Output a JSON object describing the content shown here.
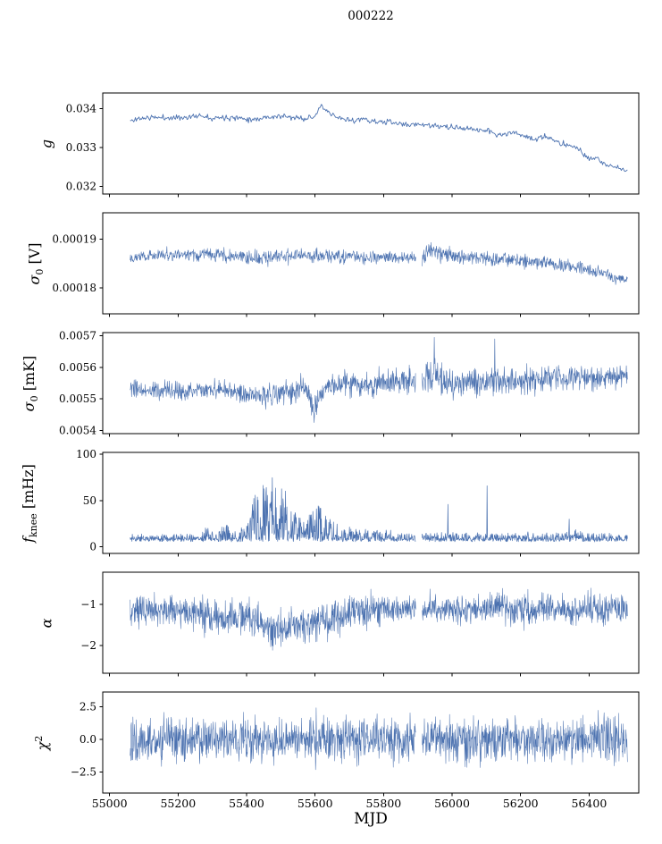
{
  "chart_data": {
    "type": "line",
    "title": "000222",
    "color": "#4c72b0",
    "x": {
      "label": "MJD",
      "lim": [
        54980,
        56545
      ],
      "start": 55060,
      "end": 56512,
      "gap": [
        55894,
        55912
      ],
      "ticks": [
        {
          "v": 55000,
          "label": "55000"
        },
        {
          "v": 55200,
          "label": "55200"
        },
        {
          "v": 55400,
          "label": "55400"
        },
        {
          "v": 55600,
          "label": "55600"
        },
        {
          "v": 55800,
          "label": "55800"
        },
        {
          "v": 56000,
          "label": "56000"
        },
        {
          "v": 56200,
          "label": "56200"
        },
        {
          "v": 56400,
          "label": "56400"
        }
      ]
    },
    "panels": [
      {
        "name": "g",
        "ylabel": [
          {
            "t": "g",
            "italic": true
          }
        ],
        "label_x": 52,
        "ylim": [
          0.0318,
          0.0344
        ],
        "yticks": [
          {
            "v": 0.032,
            "label": "0.032"
          },
          {
            "v": 0.033,
            "label": "0.033"
          },
          {
            "v": 0.034,
            "label": "0.034"
          }
        ],
        "points": 560,
        "lw": 0.9,
        "seed": 11,
        "mode": "sym",
        "gap": false,
        "trend": [
          [
            55060,
            0.03368
          ],
          [
            55090,
            0.03375
          ],
          [
            55130,
            0.03377
          ],
          [
            55180,
            0.03376
          ],
          [
            55230,
            0.03378
          ],
          [
            55270,
            0.03382
          ],
          [
            55300,
            0.03376
          ],
          [
            55340,
            0.03378
          ],
          [
            55380,
            0.03376
          ],
          [
            55420,
            0.03372
          ],
          [
            55460,
            0.03378
          ],
          [
            55500,
            0.0338
          ],
          [
            55540,
            0.03376
          ],
          [
            55570,
            0.03375
          ],
          [
            55600,
            0.0338
          ],
          [
            55618,
            0.03408
          ],
          [
            55635,
            0.0339
          ],
          [
            55660,
            0.03378
          ],
          [
            55700,
            0.0337
          ],
          [
            55740,
            0.03372
          ],
          [
            55780,
            0.03366
          ],
          [
            55820,
            0.03365
          ],
          [
            55860,
            0.03358
          ],
          [
            55900,
            0.0336
          ],
          [
            55940,
            0.03356
          ],
          [
            55980,
            0.03352
          ],
          [
            56020,
            0.0335
          ],
          [
            56060,
            0.03347
          ],
          [
            56100,
            0.03344
          ],
          [
            56140,
            0.0333
          ],
          [
            56170,
            0.03338
          ],
          [
            56200,
            0.03334
          ],
          [
            56240,
            0.0332
          ],
          [
            56270,
            0.03328
          ],
          [
            56300,
            0.03316
          ],
          [
            56340,
            0.03306
          ],
          [
            56370,
            0.03296
          ],
          [
            56400,
            0.03268
          ],
          [
            56420,
            0.03272
          ],
          [
            56450,
            0.03256
          ],
          [
            56480,
            0.03248
          ],
          [
            56512,
            0.03242
          ]
        ],
        "noise": [
          [
            55060,
            6e-05
          ],
          [
            56512,
            6e-05
          ]
        ],
        "spikes": []
      },
      {
        "name": "sigma0-v",
        "ylabel": [
          {
            "t": "σ",
            "italic": true
          },
          {
            "t": "0",
            "sub": true
          },
          {
            "t": " [V]"
          }
        ],
        "label_x": 40,
        "ylim": [
          0.0001746,
          0.0001955
        ],
        "yticks": [
          {
            "v": 0.00018,
            "label": "0.00018"
          },
          {
            "v": 0.00019,
            "label": "0.00019"
          }
        ],
        "points": 1300,
        "lw": 0.6,
        "seed": 22,
        "mode": "sym",
        "gap": true,
        "trend": [
          [
            55060,
            0.0001864
          ],
          [
            55150,
            0.0001867
          ],
          [
            55250,
            0.0001868
          ],
          [
            55350,
            0.0001867
          ],
          [
            55420,
            0.000186
          ],
          [
            55480,
            0.0001864
          ],
          [
            55560,
            0.0001866
          ],
          [
            55640,
            0.0001866
          ],
          [
            55720,
            0.0001864
          ],
          [
            55800,
            0.0001863
          ],
          [
            55870,
            0.0001862
          ],
          [
            55910,
            0.000186
          ],
          [
            55935,
            0.000188
          ],
          [
            55960,
            0.0001874
          ],
          [
            55990,
            0.0001868
          ],
          [
            56030,
            0.0001864
          ],
          [
            56080,
            0.0001861
          ],
          [
            56130,
            0.000186
          ],
          [
            56180,
            0.0001857
          ],
          [
            56230,
            0.0001855
          ],
          [
            56280,
            0.0001851
          ],
          [
            56330,
            0.0001845
          ],
          [
            56380,
            0.000184
          ],
          [
            56420,
            0.0001833
          ],
          [
            56460,
            0.0001824
          ],
          [
            56512,
            0.0001815
          ]
        ],
        "noise": [
          [
            55060,
            1e-06
          ],
          [
            55400,
            1.2e-06
          ],
          [
            55900,
            1.1e-06
          ],
          [
            55940,
            1.7e-06
          ],
          [
            56000,
            1.2e-06
          ],
          [
            56512,
            1.1e-06
          ]
        ],
        "spikes": []
      },
      {
        "name": "sigma0-mk",
        "ylabel": [
          {
            "t": "σ",
            "italic": true
          },
          {
            "t": "0",
            "sub": true
          },
          {
            "t": " [mK]"
          }
        ],
        "label_x": 34,
        "ylim": [
          0.00539,
          0.00571
        ],
        "yticks": [
          {
            "v": 0.0054,
            "label": "0.0054"
          },
          {
            "v": 0.0055,
            "label": "0.0055"
          },
          {
            "v": 0.0056,
            "label": "0.0056"
          },
          {
            "v": 0.0057,
            "label": "0.0057"
          }
        ],
        "points": 1350,
        "lw": 0.6,
        "seed": 33,
        "mode": "sym",
        "gap": true,
        "trend": [
          [
            55060,
            0.00553
          ],
          [
            55120,
            0.005525
          ],
          [
            55200,
            0.005522
          ],
          [
            55260,
            0.005528
          ],
          [
            55320,
            0.00553
          ],
          [
            55380,
            0.00552
          ],
          [
            55430,
            0.005512
          ],
          [
            55480,
            0.005515
          ],
          [
            55530,
            0.005528
          ],
          [
            55570,
            0.005535
          ],
          [
            55595,
            0.005468
          ],
          [
            55615,
            0.00552
          ],
          [
            55660,
            0.005545
          ],
          [
            55720,
            0.00555
          ],
          [
            55780,
            0.005548
          ],
          [
            55840,
            0.005552
          ],
          [
            55900,
            0.005556
          ],
          [
            55940,
            0.005575
          ],
          [
            55970,
            0.00556
          ],
          [
            56010,
            0.005548
          ],
          [
            56060,
            0.005552
          ],
          [
            56120,
            0.005558
          ],
          [
            56180,
            0.005556
          ],
          [
            56240,
            0.005558
          ],
          [
            56300,
            0.005565
          ],
          [
            56360,
            0.005562
          ],
          [
            56420,
            0.005568
          ],
          [
            56470,
            0.005565
          ],
          [
            56512,
            0.005572
          ]
        ],
        "noise": [
          [
            55060,
            2.4e-05
          ],
          [
            55300,
            2.4e-05
          ],
          [
            55450,
            3e-05
          ],
          [
            55600,
            3.4e-05
          ],
          [
            55700,
            3.2e-05
          ],
          [
            55900,
            3.6e-05
          ],
          [
            55950,
            4.5e-05
          ],
          [
            56000,
            3.6e-05
          ],
          [
            56512,
            3.4e-05
          ]
        ],
        "spikes": [
          [
            55597,
            0.005425
          ],
          [
            55948,
            0.005695
          ],
          [
            56125,
            0.00569
          ]
        ]
      },
      {
        "name": "fknee",
        "ylabel": [
          {
            "t": "f",
            "italic": true
          },
          {
            "t": "knee",
            "sub": true
          },
          {
            "t": " [mHz]"
          }
        ],
        "label_x": 33,
        "ylim": [
          -7,
          102
        ],
        "yticks": [
          {
            "v": 0,
            "label": "0"
          },
          {
            "v": 50,
            "label": "50"
          },
          {
            "v": 100,
            "label": "100"
          }
        ],
        "points": 1400,
        "lw": 0.7,
        "seed": 44,
        "mode": "asym",
        "jitter": 3,
        "gap": true,
        "trend": [
          [
            55060,
            7
          ],
          [
            56512,
            7
          ]
        ],
        "noise": [
          [
            55060,
            6
          ],
          [
            55260,
            6
          ],
          [
            55290,
            16
          ],
          [
            55310,
            8
          ],
          [
            55340,
            20
          ],
          [
            55360,
            10
          ],
          [
            55390,
            14
          ],
          [
            55410,
            35
          ],
          [
            55430,
            60
          ],
          [
            55450,
            72
          ],
          [
            55480,
            70
          ],
          [
            55510,
            55
          ],
          [
            55540,
            35
          ],
          [
            55560,
            22
          ],
          [
            55580,
            28
          ],
          [
            55610,
            40
          ],
          [
            55630,
            30
          ],
          [
            55650,
            22
          ],
          [
            55670,
            16
          ],
          [
            55700,
            14
          ],
          [
            55740,
            12
          ],
          [
            55780,
            12
          ],
          [
            55820,
            10
          ],
          [
            55860,
            9
          ],
          [
            55900,
            8
          ],
          [
            55950,
            8
          ],
          [
            56000,
            8
          ],
          [
            56100,
            8
          ],
          [
            56200,
            8
          ],
          [
            56300,
            8
          ],
          [
            56350,
            12
          ],
          [
            56380,
            8
          ],
          [
            56512,
            7
          ]
        ],
        "spikes": [
          [
            55988,
            46
          ],
          [
            56102,
            66
          ],
          [
            56342,
            30
          ]
        ]
      },
      {
        "name": "alpha",
        "ylabel": [
          {
            "t": "α",
            "italic": true
          }
        ],
        "label_x": 52,
        "ylim": [
          -2.67,
          -0.22
        ],
        "yticks": [
          {
            "v": -2,
            "label": "−2"
          },
          {
            "v": -1,
            "label": "−1"
          }
        ],
        "points": 1600,
        "lw": 0.55,
        "seed": 55,
        "mode": "sym",
        "gap": true,
        "trend": [
          [
            55060,
            -1.12
          ],
          [
            55200,
            -1.15
          ],
          [
            55280,
            -1.25
          ],
          [
            55330,
            -1.35
          ],
          [
            55370,
            -1.3
          ],
          [
            55410,
            -1.35
          ],
          [
            55440,
            -1.55
          ],
          [
            55480,
            -1.62
          ],
          [
            55520,
            -1.6
          ],
          [
            55560,
            -1.55
          ],
          [
            55590,
            -1.5
          ],
          [
            55620,
            -1.4
          ],
          [
            55660,
            -1.32
          ],
          [
            55700,
            -1.22
          ],
          [
            55750,
            -1.16
          ],
          [
            55800,
            -1.12
          ],
          [
            55900,
            -1.12
          ],
          [
            56000,
            -1.1
          ],
          [
            56200,
            -1.12
          ],
          [
            56512,
            -1.1
          ]
        ],
        "noise": [
          [
            55060,
            0.3
          ],
          [
            55250,
            0.32
          ],
          [
            55400,
            0.38
          ],
          [
            55500,
            0.42
          ],
          [
            55600,
            0.38
          ],
          [
            55700,
            0.32
          ],
          [
            55800,
            0.3
          ],
          [
            56512,
            0.3
          ]
        ],
        "spikes": []
      },
      {
        "name": "chi2",
        "ylabel": [
          {
            "t": "χ",
            "italic": true
          },
          {
            "t": "2",
            "sup": true
          }
        ],
        "label_x": 47,
        "ylim": [
          -4.1,
          3.63
        ],
        "yticks": [
          {
            "v": -2.5,
            "label": "−2.5"
          },
          {
            "v": 0,
            "label": "0.0"
          },
          {
            "v": 2.5,
            "label": "2.5"
          }
        ],
        "points": 1600,
        "lw": 0.55,
        "seed": 66,
        "mode": "sym",
        "gap": true,
        "trend": [
          [
            55060,
            0
          ],
          [
            56512,
            0
          ]
        ],
        "noise": [
          [
            55060,
            1.4
          ],
          [
            56512,
            1.4
          ]
        ],
        "spikes": []
      }
    ]
  }
}
